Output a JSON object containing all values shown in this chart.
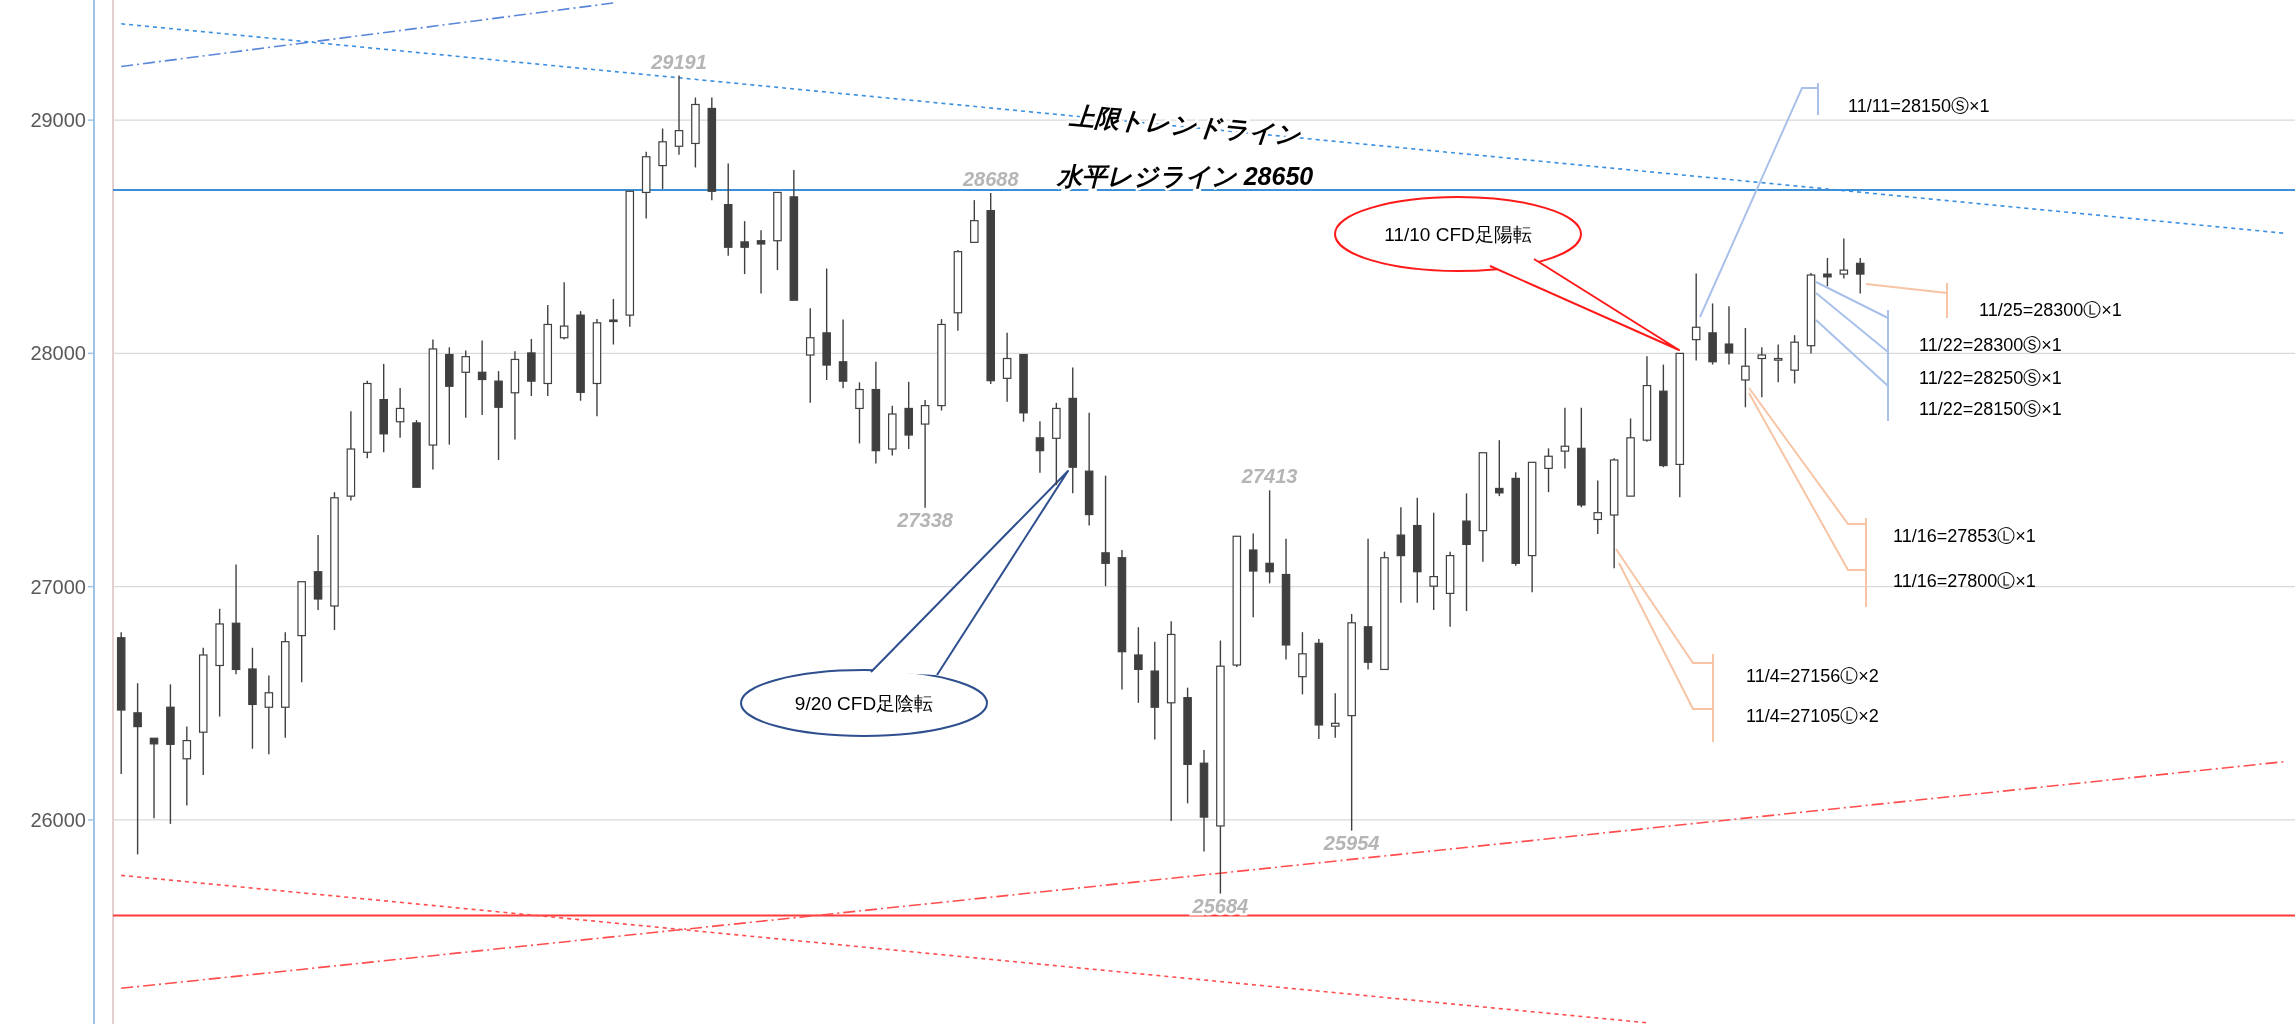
{
  "chart_data": {
    "type": "candlestick",
    "categories": [
      null,
      null,
      null,
      null,
      null,
      null,
      null,
      null,
      null,
      null,
      null,
      null,
      null,
      null,
      null,
      null,
      null,
      null,
      null,
      null,
      null,
      null,
      null,
      null,
      null,
      null,
      null,
      null,
      null,
      null,
      null,
      null,
      null,
      null,
      null,
      null,
      null,
      null,
      null,
      null,
      null,
      null,
      null,
      null,
      null,
      null,
      null,
      null,
      null,
      null,
      null,
      null,
      null,
      null,
      null,
      null,
      null,
      null,
      null,
      null,
      null,
      null,
      null,
      null,
      null,
      null,
      null,
      null,
      null,
      null,
      null,
      null,
      null,
      null,
      null,
      null,
      null,
      null,
      null,
      null,
      null,
      null,
      null,
      null,
      null,
      null,
      null,
      null,
      null,
      null,
      null,
      null,
      null,
      null,
      null,
      null,
      null,
      null,
      null,
      null,
      null,
      null,
      null,
      null,
      null,
      null,
      null,
      null,
      null,
      null,
      null,
      null,
      null,
      null,
      null,
      null,
      null,
      null,
      null,
      null,
      null,
      null,
      null,
      null,
      null,
      null,
      null,
      null,
      null,
      null,
      null,
      null,
      null
    ],
    "ohlc": [
      [
        26781,
        26805,
        26197,
        26471
      ],
      [
        26459,
        26586,
        25852,
        26400
      ],
      [
        26350,
        26350,
        26007,
        26326
      ],
      [
        26483,
        26581,
        25983,
        26324
      ],
      [
        26262,
        26400,
        26062,
        26340
      ],
      [
        26376,
        26738,
        26193,
        26707
      ],
      [
        26662,
        26905,
        26443,
        26840
      ],
      [
        26843,
        27095,
        26624,
        26645
      ],
      [
        26647,
        26738,
        26305,
        26495
      ],
      [
        26483,
        26619,
        26281,
        26545
      ],
      [
        26483,
        26805,
        26352,
        26764
      ],
      [
        26790,
        27021,
        26590,
        27021
      ],
      [
        27064,
        27221,
        26900,
        26947
      ],
      [
        26917,
        27405,
        26814,
        27381
      ],
      [
        27388,
        27752,
        27369,
        27590
      ],
      [
        27576,
        27883,
        27550,
        27871
      ],
      [
        27802,
        27955,
        27576,
        27655
      ],
      [
        27707,
        27852,
        27638,
        27764
      ],
      [
        27702,
        27714,
        27426,
        27426
      ],
      [
        27607,
        28059,
        27502,
        28019
      ],
      [
        27995,
        28026,
        27609,
        27859
      ],
      [
        27919,
        28012,
        27724,
        27986
      ],
      [
        27919,
        28055,
        27736,
        27888
      ],
      [
        27881,
        27924,
        27543,
        27769
      ],
      [
        27831,
        28009,
        27631,
        27974
      ],
      [
        28002,
        28062,
        27817,
        27881
      ],
      [
        27871,
        28207,
        27817,
        28124
      ],
      [
        28067,
        28305,
        28060,
        28117
      ],
      [
        28164,
        28181,
        27797,
        27833
      ],
      [
        27871,
        28147,
        27731,
        28131
      ],
      [
        28143,
        28233,
        28038,
        28138
      ],
      [
        28164,
        28695,
        28114,
        28695
      ],
      [
        28690,
        28864,
        28578,
        28843
      ],
      [
        28805,
        28964,
        28705,
        28907
      ],
      [
        28888,
        29191,
        28852,
        28955
      ],
      [
        28900,
        29097,
        28797,
        29067
      ],
      [
        29050,
        29097,
        28657,
        28695
      ],
      [
        28638,
        28814,
        28419,
        28455
      ],
      [
        28478,
        28567,
        28340,
        28455
      ],
      [
        28483,
        28528,
        28257,
        28469
      ],
      [
        28483,
        28690,
        28357,
        28690
      ],
      [
        28671,
        28786,
        28228,
        28228
      ],
      [
        27993,
        28193,
        27788,
        28067
      ],
      [
        28088,
        28364,
        27886,
        27950
      ],
      [
        27964,
        28145,
        27850,
        27881
      ],
      [
        27764,
        27876,
        27614,
        27845
      ],
      [
        27845,
        27964,
        27528,
        27583
      ],
      [
        27590,
        27776,
        27562,
        27740
      ],
      [
        27764,
        27878,
        27590,
        27650
      ],
      [
        27697,
        27800,
        27338,
        27776
      ],
      [
        27776,
        28147,
        27755,
        28124
      ],
      [
        28174,
        28443,
        28097,
        28436
      ],
      [
        28476,
        28657,
        28476,
        28569
      ],
      [
        28612,
        28688,
        27869,
        27883
      ],
      [
        27893,
        28088,
        27793,
        27978
      ],
      [
        27995,
        27995,
        27707,
        27745
      ],
      [
        27638,
        27709,
        27488,
        27583
      ],
      [
        27636,
        27788,
        27436,
        27764
      ],
      [
        27807,
        27940,
        27400,
        27512
      ],
      [
        27495,
        27745,
        27262,
        27309
      ],
      [
        27145,
        27476,
        27002,
        27100
      ],
      [
        27124,
        27157,
        26559,
        26721
      ],
      [
        26707,
        26826,
        26502,
        26645
      ],
      [
        26638,
        26764,
        26345,
        26483
      ],
      [
        26502,
        26852,
        25995,
        26795
      ],
      [
        26524,
        26567,
        26071,
        26238
      ],
      [
        26243,
        26300,
        25864,
        26012
      ],
      [
        25974,
        26769,
        25684,
        26659
      ],
      [
        26664,
        27216,
        26655,
        27216
      ],
      [
        27157,
        27228,
        26869,
        27067
      ],
      [
        27100,
        27413,
        27014,
        27064
      ],
      [
        27052,
        27205,
        26688,
        26750
      ],
      [
        26614,
        26805,
        26538,
        26712
      ],
      [
        26757,
        26776,
        26347,
        26407
      ],
      [
        26402,
        26543,
        26352,
        26414
      ],
      [
        26447,
        26883,
        25954,
        26845
      ],
      [
        26828,
        27205,
        26645,
        26676
      ],
      [
        26645,
        27150,
        26645,
        27124
      ],
      [
        27221,
        27340,
        26931,
        27133
      ],
      [
        27262,
        27381,
        26931,
        27064
      ],
      [
        27002,
        27317,
        26900,
        27043
      ],
      [
        26971,
        27150,
        26828,
        27133
      ],
      [
        27281,
        27400,
        26895,
        27181
      ],
      [
        27240,
        27574,
        27107,
        27574
      ],
      [
        27421,
        27628,
        27388,
        27402
      ],
      [
        27464,
        27490,
        27090,
        27100
      ],
      [
        27133,
        27533,
        26976,
        27533
      ],
      [
        27507,
        27593,
        27405,
        27559
      ],
      [
        27581,
        27767,
        27507,
        27602
      ],
      [
        27593,
        27767,
        27340,
        27350
      ],
      [
        27288,
        27455,
        27226,
        27317
      ],
      [
        27307,
        27550,
        27079,
        27543
      ],
      [
        27388,
        27721,
        27388,
        27638
      ],
      [
        27628,
        27988,
        27621,
        27862
      ],
      [
        27838,
        27952,
        27512,
        27519
      ],
      [
        27524,
        28000,
        27383,
        28000
      ],
      [
        28059,
        28343,
        27969,
        28112
      ],
      [
        28088,
        28214,
        27952,
        27964
      ],
      [
        28040,
        28202,
        27952,
        28002
      ],
      [
        27886,
        28109,
        27769,
        27945
      ],
      [
        27978,
        28026,
        27812,
        27993
      ],
      [
        27971,
        28038,
        27876,
        27978
      ],
      [
        27928,
        28078,
        27871,
        28048
      ],
      [
        28033,
        28345,
        28000,
        28336
      ],
      [
        28340,
        28409,
        28288,
        28328
      ],
      [
        28340,
        28493,
        28321,
        28357
      ],
      [
        28386,
        28409,
        28257,
        28340
      ],
      null,
      null,
      null,
      null,
      null,
      null,
      null,
      null,
      null,
      null,
      null,
      null,
      null,
      null,
      null,
      null,
      null,
      null,
      null,
      null,
      null,
      null,
      null,
      null,
      null,
      null
    ],
    "series": [
      {
        "type": "line",
        "color": "#5a86d8",
        "line_style": "dashed",
        "values": [
          29230,
          null,
          null,
          null,
          null,
          null,
          null,
          null,
          null,
          null,
          null,
          null,
          null,
          null,
          null,
          null,
          null,
          null,
          null,
          null,
          null,
          null,
          null,
          null,
          null,
          null,
          null,
          null,
          null,
          null,
          29502,
          null,
          null,
          null,
          null,
          null,
          null,
          null,
          null,
          null,
          null,
          null,
          null,
          null,
          null,
          null,
          null,
          null,
          null,
          null,
          null,
          null,
          null,
          null,
          null,
          null,
          null,
          null,
          null,
          null,
          null,
          null,
          null,
          null,
          null,
          null,
          null,
          null,
          null,
          null,
          null,
          null,
          null,
          null,
          null,
          null,
          null,
          null,
          null,
          null,
          null,
          null,
          null,
          null,
          null,
          null,
          null,
          null,
          null,
          null,
          null,
          null,
          null,
          null,
          null,
          null,
          null,
          null,
          null,
          null,
          null,
          null,
          null,
          null,
          null,
          null,
          null,
          null,
          null,
          null,
          null,
          null,
          null,
          null,
          null,
          null,
          null,
          null,
          null,
          null,
          null,
          null,
          null,
          null,
          null,
          null,
          null,
          null,
          null,
          null,
          null,
          null,
          null
        ]
      },
      {
        "type": "line",
        "color": "#3b8fe0",
        "line_style": "dotted",
        "values": [
          29413,
          null,
          null,
          null,
          null,
          null,
          null,
          null,
          null,
          null,
          null,
          null,
          null,
          null,
          null,
          null,
          null,
          null,
          null,
          null,
          null,
          null,
          null,
          null,
          null,
          null,
          null,
          null,
          null,
          null,
          null,
          null,
          null,
          null,
          null,
          null,
          null,
          null,
          null,
          null,
          null,
          null,
          null,
          null,
          null,
          null,
          null,
          null,
          null,
          null,
          null,
          null,
          null,
          null,
          null,
          null,
          null,
          null,
          null,
          null,
          null,
          null,
          null,
          null,
          null,
          null,
          null,
          null,
          null,
          null,
          null,
          null,
          null,
          null,
          null,
          null,
          null,
          null,
          null,
          null,
          null,
          null,
          null,
          null,
          null,
          null,
          null,
          null,
          null,
          null,
          null,
          null,
          null,
          null,
          null,
          null,
          null,
          null,
          null,
          null,
          null,
          null,
          null,
          null,
          null,
          null,
          null,
          null,
          null,
          null,
          null,
          null,
          null,
          null,
          null,
          null,
          null,
          null,
          null,
          null,
          null,
          null,
          null,
          null,
          null,
          null,
          null,
          null,
          null,
          null,
          null,
          null,
          28514
        ]
      },
      {
        "type": "line",
        "color": "#ff4d4d",
        "line_style": "dotted",
        "values": [
          25762,
          null,
          null,
          null,
          null,
          null,
          null,
          null,
          null,
          null,
          null,
          null,
          null,
          null,
          null,
          null,
          null,
          null,
          null,
          null,
          null,
          null,
          null,
          null,
          null,
          null,
          null,
          null,
          null,
          null,
          null,
          null,
          null,
          null,
          null,
          null,
          null,
          null,
          null,
          null,
          null,
          null,
          null,
          null,
          null,
          null,
          null,
          null,
          null,
          null,
          null,
          null,
          null,
          null,
          null,
          null,
          null,
          null,
          null,
          null,
          null,
          null,
          null,
          null,
          null,
          null,
          null,
          null,
          null,
          null,
          null,
          null,
          null,
          null,
          null,
          null,
          null,
          null,
          null,
          null,
          null,
          null,
          null,
          null,
          null,
          null,
          null,
          null,
          null,
          null,
          null,
          null,
          null,
          25130,
          null,
          null,
          null,
          null,
          null,
          null,
          null,
          null,
          null,
          null,
          null,
          null,
          null,
          null,
          null,
          null,
          null,
          null,
          null,
          null,
          null,
          null,
          null,
          null,
          null,
          null,
          null,
          null,
          null,
          null,
          null,
          null,
          null,
          null,
          null,
          null,
          null,
          null,
          null
        ]
      },
      {
        "type": "line",
        "color": "#ff4d4d",
        "line_style": "dashed",
        "values": [
          25278,
          null,
          null,
          null,
          null,
          null,
          null,
          null,
          null,
          null,
          null,
          null,
          null,
          null,
          null,
          null,
          null,
          null,
          null,
          null,
          null,
          null,
          null,
          null,
          null,
          null,
          null,
          null,
          null,
          null,
          null,
          null,
          null,
          null,
          null,
          null,
          null,
          null,
          null,
          null,
          null,
          null,
          null,
          null,
          null,
          null,
          null,
          null,
          null,
          null,
          null,
          null,
          null,
          null,
          null,
          null,
          null,
          null,
          null,
          null,
          null,
          null,
          null,
          null,
          null,
          null,
          null,
          null,
          null,
          null,
          null,
          null,
          null,
          null,
          null,
          null,
          null,
          null,
          null,
          null,
          null,
          null,
          null,
          null,
          null,
          null,
          null,
          null,
          null,
          null,
          null,
          null,
          null,
          null,
          null,
          null,
          null,
          null,
          null,
          null,
          null,
          null,
          null,
          null,
          null,
          null,
          null,
          null,
          null,
          null,
          null,
          null,
          null,
          null,
          null,
          null,
          null,
          null,
          null,
          null,
          null,
          null,
          null,
          null,
          null,
          null,
          null,
          null,
          null,
          null,
          null,
          null,
          26251
        ]
      }
    ],
    "ref_lines": [
      {
        "axis": "y",
        "value": 28700,
        "color": "#3d8fd6"
      },
      {
        "axis": "y",
        "value": 25590,
        "color": "#ff3b3b"
      }
    ],
    "ylim": [
      25125,
      29515
    ],
    "yticks": [
      26000,
      27000,
      28000,
      29000
    ],
    "grid": "y",
    "tick_labels": "y",
    "annotations": [
      "上限トレンドライン",
      "水平レジライン 28650",
      "9/20 CFD足陰転",
      "11/10 CFD足陽転",
      "11/11=28150Ⓢ×1",
      "11/25=28300Ⓛ×1",
      "11/22=28300Ⓢ×1",
      "11/22=28250Ⓢ×1",
      "11/22=28150Ⓢ×1",
      "11/16=27853Ⓛ×1",
      "11/16=27800Ⓛ×1",
      "11/4=27156Ⓛ×2",
      "11/4=27105Ⓛ×2",
      {
        "text": "29191",
        "y": 29191
      },
      {
        "text": "28688",
        "y": 28688
      },
      {
        "text": "27338",
        "y": 27338
      },
      {
        "text": "27413",
        "y": 27413
      },
      {
        "text": "25954",
        "y": 25954
      },
      {
        "text": "25684",
        "y": 25684
      }
    ]
  }
}
